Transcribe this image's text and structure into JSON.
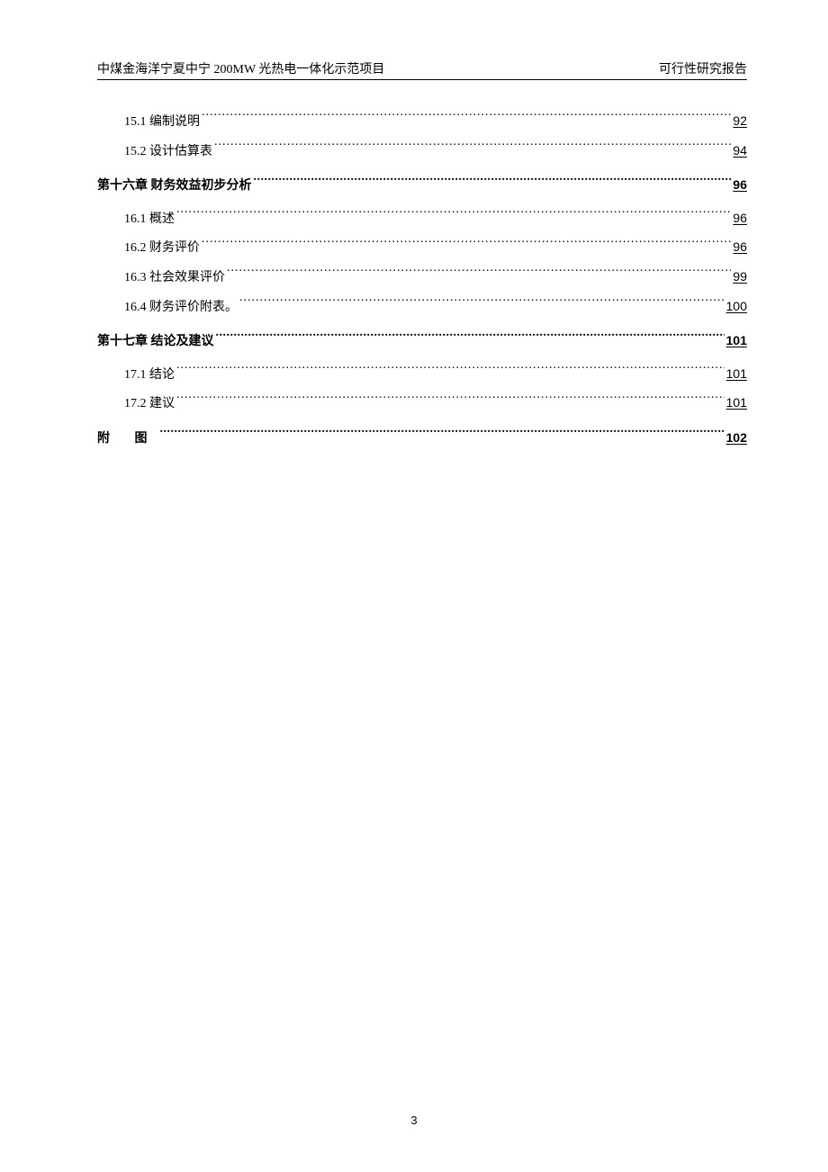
{
  "header": {
    "left": "中煤金海洋宁夏中宁 200MW 光热电一体化示范项目",
    "right": "可行性研究报告"
  },
  "toc": {
    "entries": [
      {
        "type": "section",
        "num": "15.1",
        "title": "编制说明",
        "page": "92"
      },
      {
        "type": "section",
        "num": "15.2",
        "title": "设计估算表",
        "page": "94"
      },
      {
        "type": "chapter",
        "title": "第十六章 财务效益初步分析",
        "page": "96"
      },
      {
        "type": "section",
        "num": "16.1",
        "title": "概述",
        "page": "96"
      },
      {
        "type": "section",
        "num": "16.2",
        "title": "财务评价",
        "page": "96"
      },
      {
        "type": "section",
        "num": "16.3",
        "title": "社会效果评价",
        "page": "99"
      },
      {
        "type": "section",
        "num": "16.4",
        "title": "财务评价附表。",
        "page": "100"
      },
      {
        "type": "chapter",
        "title": "第十七章 结论及建议",
        "page": "101"
      },
      {
        "type": "section",
        "num": "17.1",
        "title": "结论",
        "page": "101"
      },
      {
        "type": "section",
        "num": "17.2",
        "title": "建议",
        "page": "101"
      },
      {
        "type": "appendix",
        "title": "附  图",
        "page": "102"
      }
    ]
  },
  "pageNumber": "3"
}
